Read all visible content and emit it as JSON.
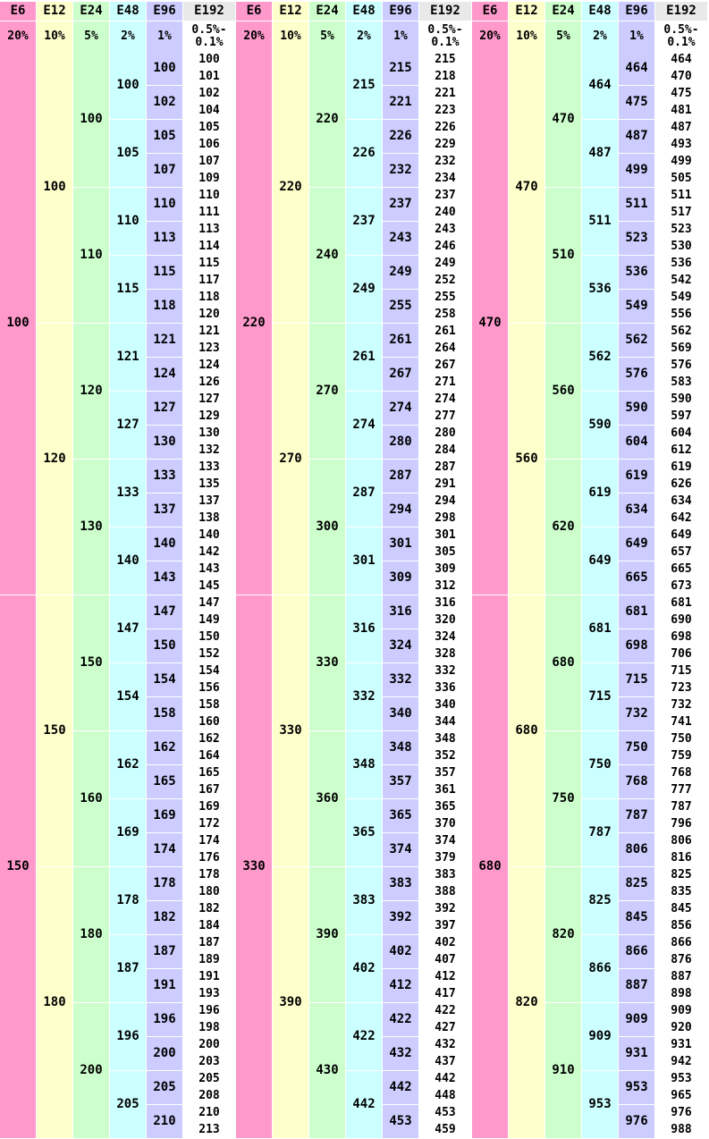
{
  "colors": {
    "E6": "#ff99cc",
    "E12": "#ffffcc",
    "E24": "#ccffcc",
    "E48": "#ccffff",
    "E96": "#ccccff",
    "E192": "#ffffff",
    "header": "#e9e9e9"
  },
  "groups": [
    {
      "headers": [
        "E6",
        "E12",
        "E24",
        "E48",
        "E96",
        "E192"
      ],
      "tolerances": [
        "20%",
        "10%",
        "5%",
        "2%",
        "1%",
        "0.5%-\n0.1%"
      ],
      "E6": [
        "100",
        "150"
      ],
      "E12": [
        "100",
        "120",
        "150",
        "180"
      ],
      "E24": [
        "100",
        "110",
        "120",
        "130",
        "150",
        "160",
        "180",
        "200"
      ],
      "E48": [
        "100",
        "105",
        "110",
        "115",
        "121",
        "127",
        "133",
        "140",
        "147",
        "154",
        "162",
        "169",
        "178",
        "187",
        "196",
        "205"
      ],
      "E96": [
        "100",
        "102",
        "105",
        "107",
        "110",
        "113",
        "115",
        "118",
        "121",
        "124",
        "127",
        "130",
        "133",
        "137",
        "140",
        "143",
        "147",
        "150",
        "154",
        "158",
        "162",
        "165",
        "169",
        "174",
        "178",
        "182",
        "187",
        "191",
        "196",
        "200",
        "205",
        "210"
      ],
      "E192": [
        "100",
        "101",
        "102",
        "104",
        "105",
        "106",
        "107",
        "109",
        "110",
        "111",
        "113",
        "114",
        "115",
        "117",
        "118",
        "120",
        "121",
        "123",
        "124",
        "126",
        "127",
        "129",
        "130",
        "132",
        "133",
        "135",
        "137",
        "138",
        "140",
        "142",
        "143",
        "145",
        "147",
        "149",
        "150",
        "152",
        "154",
        "156",
        "158",
        "160",
        "162",
        "164",
        "165",
        "167",
        "169",
        "172",
        "174",
        "176",
        "178",
        "180",
        "182",
        "184",
        "187",
        "189",
        "191",
        "193",
        "196",
        "198",
        "200",
        "203",
        "205",
        "208",
        "210",
        "213"
      ]
    },
    {
      "headers": [
        "E6",
        "E12",
        "E24",
        "E48",
        "E96",
        "E192"
      ],
      "tolerances": [
        "20%",
        "10%",
        "5%",
        "2%",
        "1%",
        "0.5%-\n0.1%"
      ],
      "E6": [
        "220",
        "330"
      ],
      "E12": [
        "220",
        "270",
        "330",
        "390"
      ],
      "E24": [
        "220",
        "240",
        "270",
        "300",
        "330",
        "360",
        "390",
        "430"
      ],
      "E48": [
        "215",
        "226",
        "237",
        "249",
        "261",
        "274",
        "287",
        "301",
        "316",
        "332",
        "348",
        "365",
        "383",
        "402",
        "422",
        "442"
      ],
      "E96": [
        "215",
        "221",
        "226",
        "232",
        "237",
        "243",
        "249",
        "255",
        "261",
        "267",
        "274",
        "280",
        "287",
        "294",
        "301",
        "309",
        "316",
        "324",
        "332",
        "340",
        "348",
        "357",
        "365",
        "374",
        "383",
        "392",
        "402",
        "412",
        "422",
        "432",
        "442",
        "453"
      ],
      "E192": [
        "215",
        "218",
        "221",
        "223",
        "226",
        "229",
        "232",
        "234",
        "237",
        "240",
        "243",
        "246",
        "249",
        "252",
        "255",
        "258",
        "261",
        "264",
        "267",
        "271",
        "274",
        "277",
        "280",
        "284",
        "287",
        "291",
        "294",
        "298",
        "301",
        "305",
        "309",
        "312",
        "316",
        "320",
        "324",
        "328",
        "332",
        "336",
        "340",
        "344",
        "348",
        "352",
        "357",
        "361",
        "365",
        "370",
        "374",
        "379",
        "383",
        "388",
        "392",
        "397",
        "402",
        "407",
        "412",
        "417",
        "422",
        "427",
        "432",
        "437",
        "442",
        "448",
        "453",
        "459"
      ]
    },
    {
      "headers": [
        "E6",
        "E12",
        "E24",
        "E48",
        "E96",
        "E192"
      ],
      "tolerances": [
        "20%",
        "10%",
        "5%",
        "2%",
        "1%",
        "0.5%-\n0.1%"
      ],
      "E6": [
        "470",
        "680"
      ],
      "E12": [
        "470",
        "560",
        "680",
        "820"
      ],
      "E24": [
        "470",
        "510",
        "560",
        "620",
        "680",
        "750",
        "820",
        "910"
      ],
      "E48": [
        "464",
        "487",
        "511",
        "536",
        "562",
        "590",
        "619",
        "649",
        "681",
        "715",
        "750",
        "787",
        "825",
        "866",
        "909",
        "953"
      ],
      "E96": [
        "464",
        "475",
        "487",
        "499",
        "511",
        "523",
        "536",
        "549",
        "562",
        "576",
        "590",
        "604",
        "619",
        "634",
        "649",
        "665",
        "681",
        "698",
        "715",
        "732",
        "750",
        "768",
        "787",
        "806",
        "825",
        "845",
        "866",
        "887",
        "909",
        "931",
        "953",
        "976"
      ],
      "E192": [
        "464",
        "470",
        "475",
        "481",
        "487",
        "493",
        "499",
        "505",
        "511",
        "517",
        "523",
        "530",
        "536",
        "542",
        "549",
        "556",
        "562",
        "569",
        "576",
        "583",
        "590",
        "597",
        "604",
        "612",
        "619",
        "626",
        "634",
        "642",
        "649",
        "657",
        "665",
        "673",
        "681",
        "690",
        "698",
        "706",
        "715",
        "723",
        "732",
        "741",
        "750",
        "759",
        "768",
        "777",
        "787",
        "796",
        "806",
        "816",
        "825",
        "835",
        "845",
        "856",
        "866",
        "876",
        "887",
        "898",
        "909",
        "920",
        "931",
        "942",
        "953",
        "965",
        "976",
        "988"
      ]
    }
  ]
}
